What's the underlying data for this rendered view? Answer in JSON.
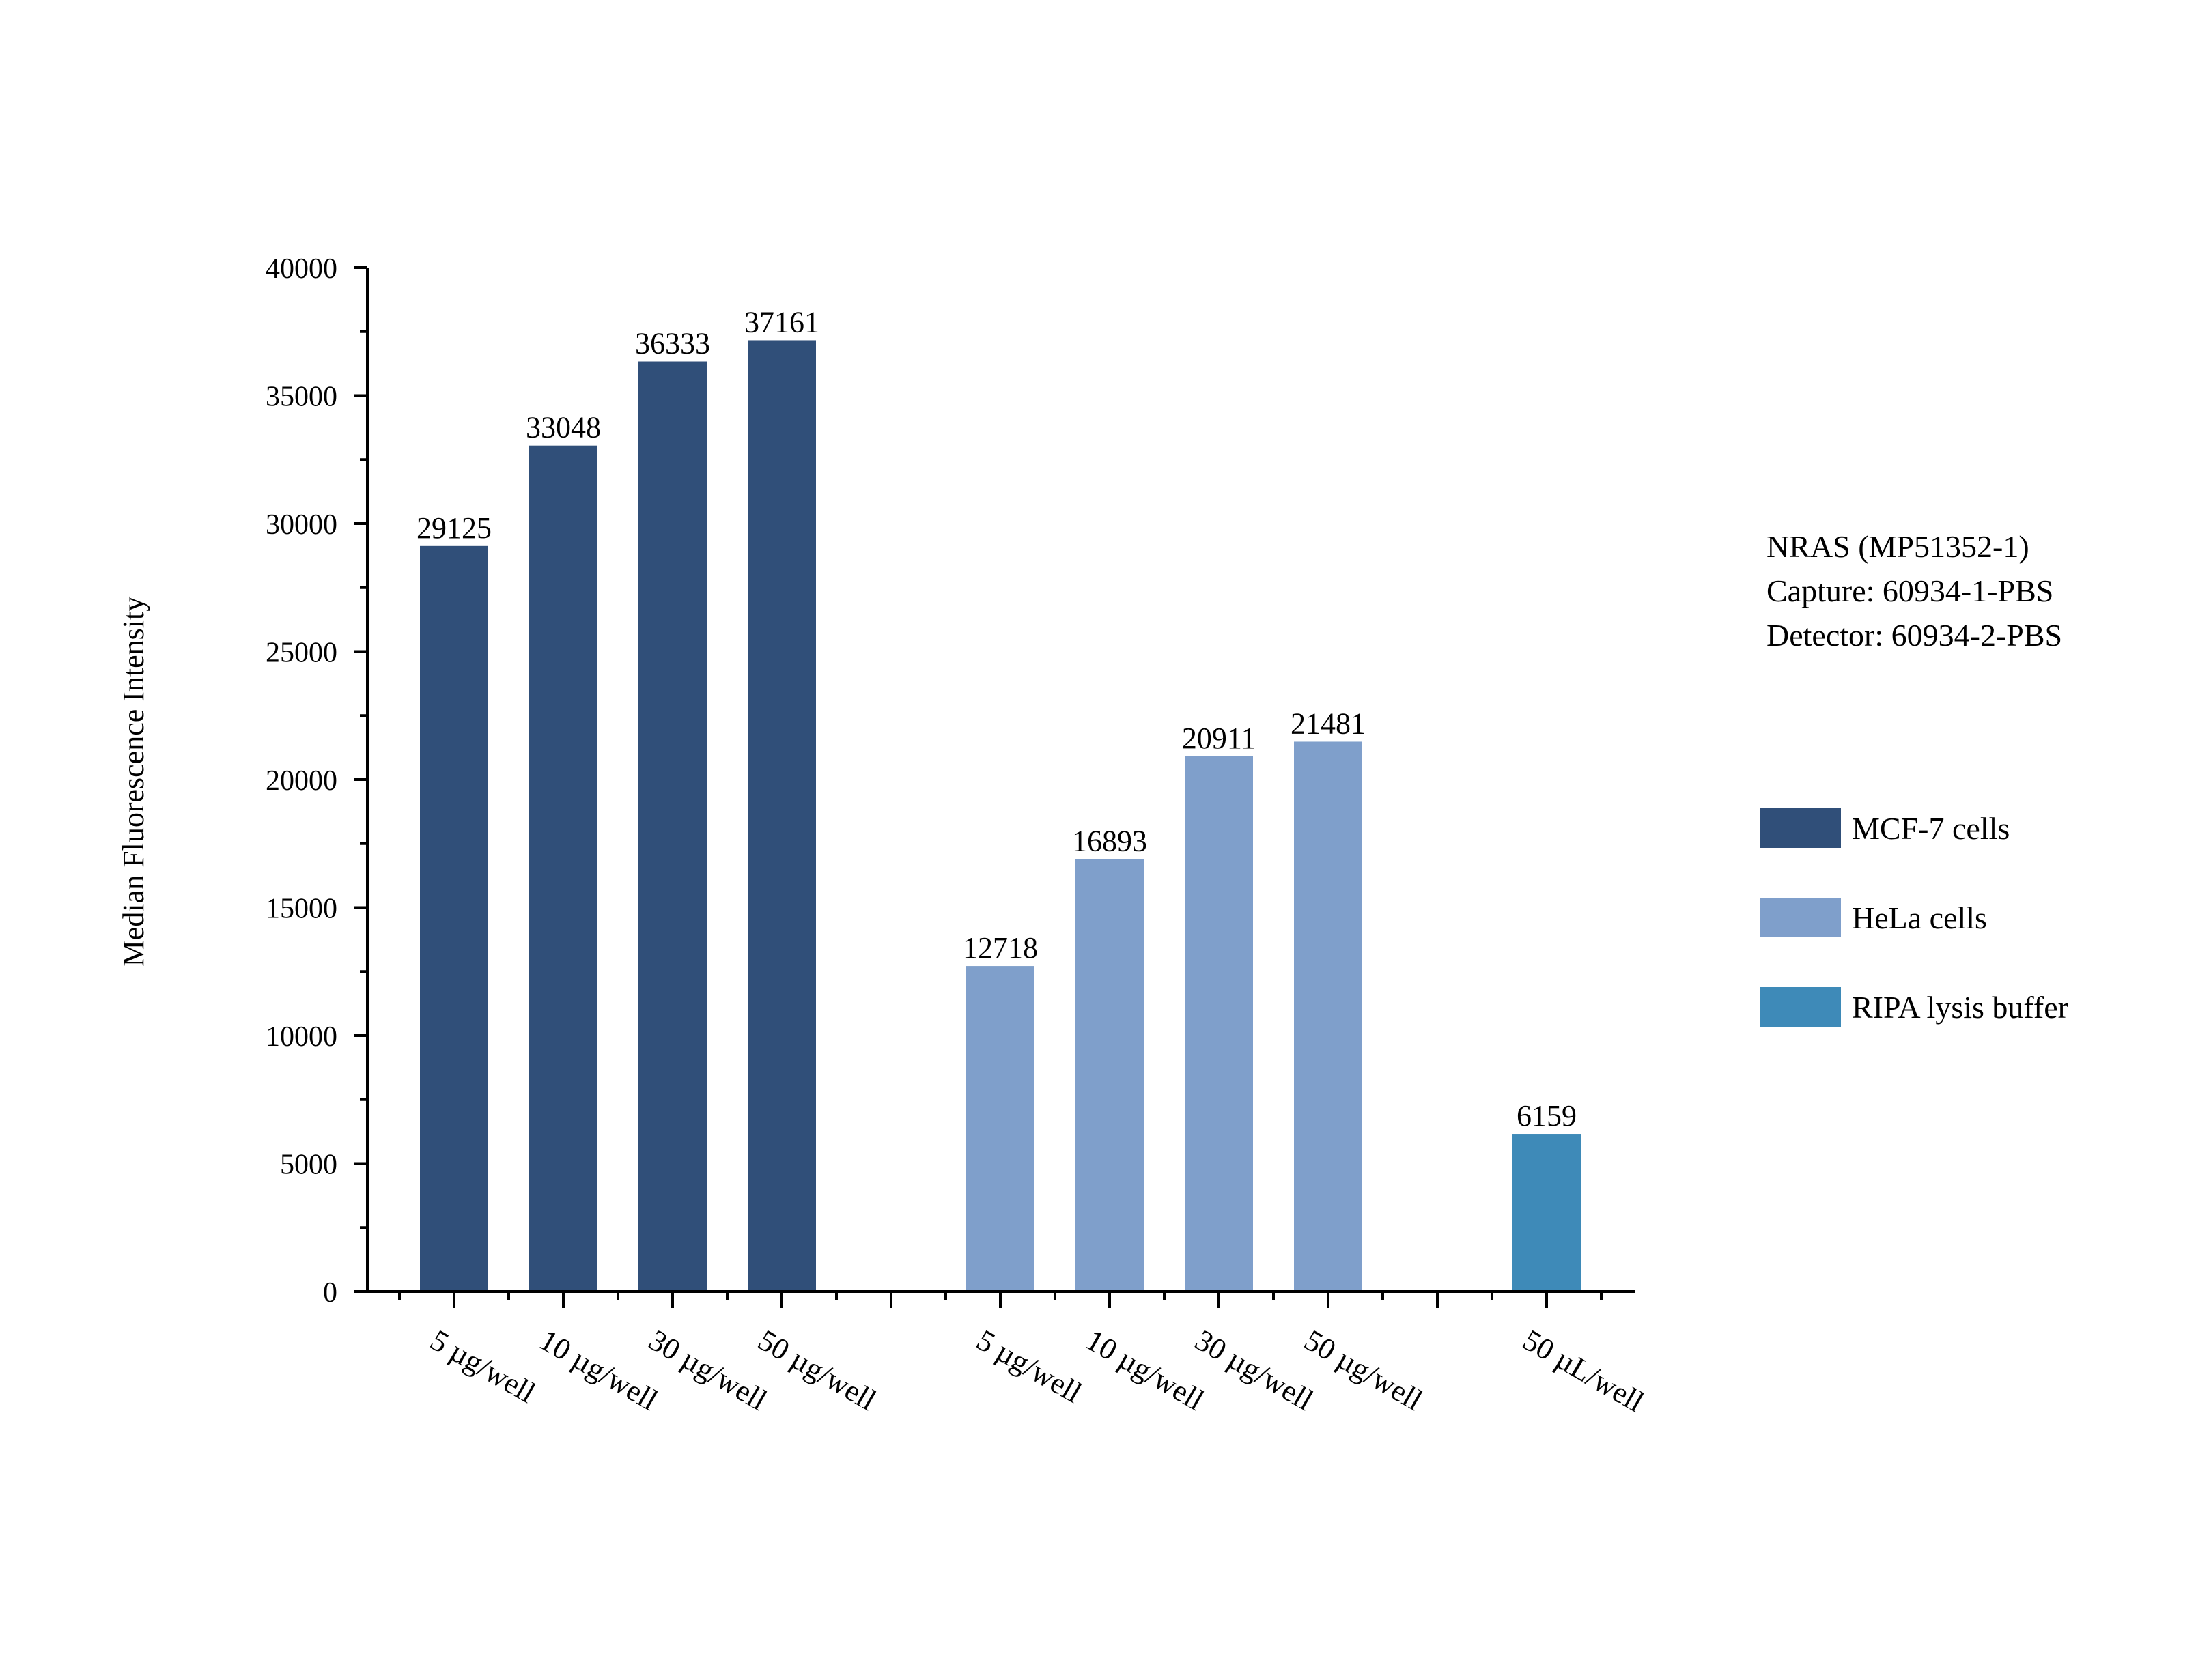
{
  "chart_data": {
    "type": "bar",
    "title": "",
    "xlabel": "",
    "ylabel": "Median Fluorescence Intensity",
    "ylim": [
      0,
      40000
    ],
    "yticks": [
      "0",
      "5000",
      "10000",
      "15000",
      "20000",
      "25000",
      "30000",
      "35000",
      "40000"
    ],
    "ytick_values": [
      0,
      5000,
      10000,
      15000,
      20000,
      25000,
      30000,
      35000,
      40000
    ],
    "grid": false,
    "legend_position": "right",
    "series": [
      {
        "name": "MCF-7 cells",
        "color": "#304f79",
        "categories": [
          "5 µg/well",
          "10 µg/well",
          "30 µg/well",
          "50 µg/well"
        ],
        "values": [
          29125,
          33048,
          36333,
          37161
        ]
      },
      {
        "name": "HeLa cells",
        "color": "#7f9fcb",
        "categories": [
          "5 µg/well",
          "10 µg/well",
          "30 µg/well",
          "50 µg/well"
        ],
        "values": [
          12718,
          16893,
          20911,
          21481
        ]
      },
      {
        "name": "RIPA lysis buffer",
        "color": "#3e8ab8",
        "categories": [
          "50 µL/well"
        ],
        "values": [
          6159
        ]
      }
    ],
    "annotation": [
      "NRAS (MP51352-1)",
      "Capture: 60934-1-PBS",
      "Detector: 60934-2-PBS"
    ]
  }
}
